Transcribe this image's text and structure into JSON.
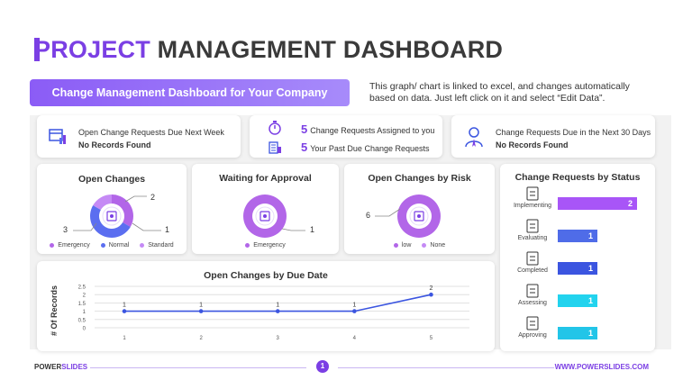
{
  "title": {
    "accent": "PROJECT",
    "rest": " MANAGEMENT DASHBOARD"
  },
  "banner": "Change Management Dashboard for Your Company",
  "note": "This graph/ chart is linked to excel, and changes automatically based on data. Just left click on it and select “Edit Data”.",
  "kpi": {
    "left": {
      "line1": "Open Change Requests Due Next Week",
      "line2": "No Records Found"
    },
    "middle": [
      {
        "count": "5",
        "text": "Change Requests Assigned to you"
      },
      {
        "count": "5",
        "text": "Your Past Due Change Requests"
      }
    ],
    "right": {
      "line1": "Change Requests Due in the Next 30 Days",
      "line2": "No Records Found"
    }
  },
  "colors": {
    "accent": "#7b3fe4",
    "light_purple": "#a855f7",
    "blue": "#4f6ce8",
    "cyan": "#22d3ee"
  },
  "chart_data": [
    {
      "type": "pie",
      "title": "Open Changes",
      "labels": [
        "Emergency",
        "Normal",
        "Standard"
      ],
      "values": [
        2,
        3,
        1
      ],
      "colors": [
        "#b266e8",
        "#5b6ef0",
        "#c58af5"
      ]
    },
    {
      "type": "pie",
      "title": "Waiting for Approval",
      "labels": [
        "Emergency"
      ],
      "values": [
        1
      ],
      "colors": [
        "#b266e8"
      ]
    },
    {
      "type": "pie",
      "title": "Open Changes by Risk",
      "labels": [
        "low",
        "None"
      ],
      "values": [
        6,
        0
      ],
      "colors": [
        "#b266e8",
        "#c58af5"
      ]
    },
    {
      "type": "line",
      "title": "Open Changes by Due Date",
      "ylabel": "# Of Records",
      "x": [
        1,
        2,
        3,
        4,
        5
      ],
      "values": [
        1,
        1,
        1,
        1,
        2
      ],
      "ylim": [
        0,
        2.5
      ],
      "yticks": [
        "0",
        "0.5",
        "1",
        "1.5",
        "2",
        "2.5"
      ],
      "grid": true
    },
    {
      "type": "bar",
      "title": "Change Requests by Status",
      "categories": [
        "Implementing",
        "Evaluating",
        "Completed",
        "Assessing",
        "Approving"
      ],
      "values": [
        2,
        1,
        1,
        1,
        1
      ],
      "colors": [
        "#a855f7",
        "#4f6ce8",
        "#3b55e0",
        "#22d3ee",
        "#22c5e8"
      ]
    }
  ],
  "footer": {
    "brand_a": "POWER",
    "brand_b": "SLIDES",
    "page": "1",
    "url": "WWW.POWERSLIDES.COM"
  }
}
